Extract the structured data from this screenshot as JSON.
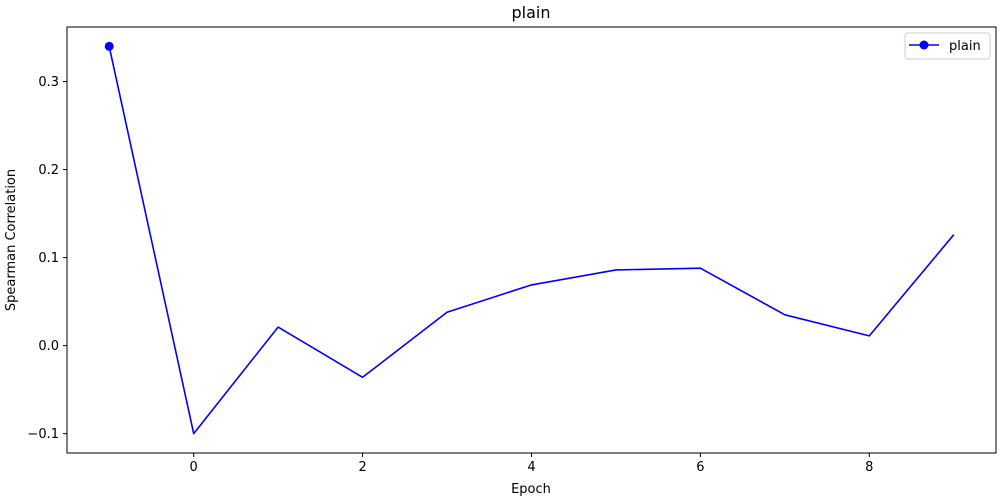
{
  "chart_data": {
    "type": "line",
    "title": "plain",
    "xlabel": "Epoch",
    "ylabel": "Spearman Correlation",
    "xlim": [
      -1.5,
      9.5
    ],
    "ylim": [
      -0.122,
      0.362
    ],
    "xticks": [
      0,
      2,
      4,
      6,
      8
    ],
    "yticks": [
      -0.1,
      0.0,
      0.1,
      0.2,
      0.3
    ],
    "xtick_labels": [
      "0",
      "2",
      "4",
      "6",
      "8"
    ],
    "ytick_labels": [
      "−0.1",
      "0.0",
      "0.1",
      "0.2",
      "0.3"
    ],
    "legend": {
      "position": "top-right",
      "entries": [
        "plain"
      ]
    },
    "grid": false,
    "series": [
      {
        "name": "plain",
        "color": "#0000ff",
        "marker_indices": [
          0
        ],
        "x": [
          -1,
          0,
          1,
          2,
          3,
          4,
          5,
          6,
          7,
          8,
          9
        ],
        "y": [
          0.34,
          -0.1,
          0.021,
          -0.036,
          0.038,
          0.069,
          0.086,
          0.088,
          0.035,
          0.011,
          0.126
        ]
      }
    ]
  }
}
